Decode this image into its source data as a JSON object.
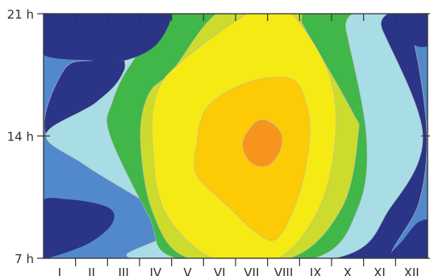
{
  "chart_data": {
    "type": "heatmap",
    "subtype": "filled-contour",
    "title": "",
    "xlabel": "",
    "ylabel": "",
    "x_unit": "month",
    "y_unit": "hour of day",
    "x_tick_labels": [
      "I",
      "II",
      "III",
      "IV",
      "V",
      "VI",
      "VII",
      "VIII",
      "IX",
      "X",
      "XI",
      "XII"
    ],
    "y_tick_labels": [
      "7 h",
      "14 h",
      "21 h"
    ],
    "y_tick_values": [
      7,
      14,
      21
    ],
    "xlim": [
      0.5,
      12.5
    ],
    "ylim": [
      7,
      21
    ],
    "grid": false,
    "legend": "none",
    "level_colors": [
      "#2a3587",
      "#5289cc",
      "#a8dde6",
      "#41b649",
      "#cddc2c",
      "#f5ea14",
      "#fdca06",
      "#f7941e"
    ],
    "colors": {
      "contour_line": "#b8b8b8",
      "axis": "#333333",
      "tick_text": "#2f2f2f"
    }
  }
}
